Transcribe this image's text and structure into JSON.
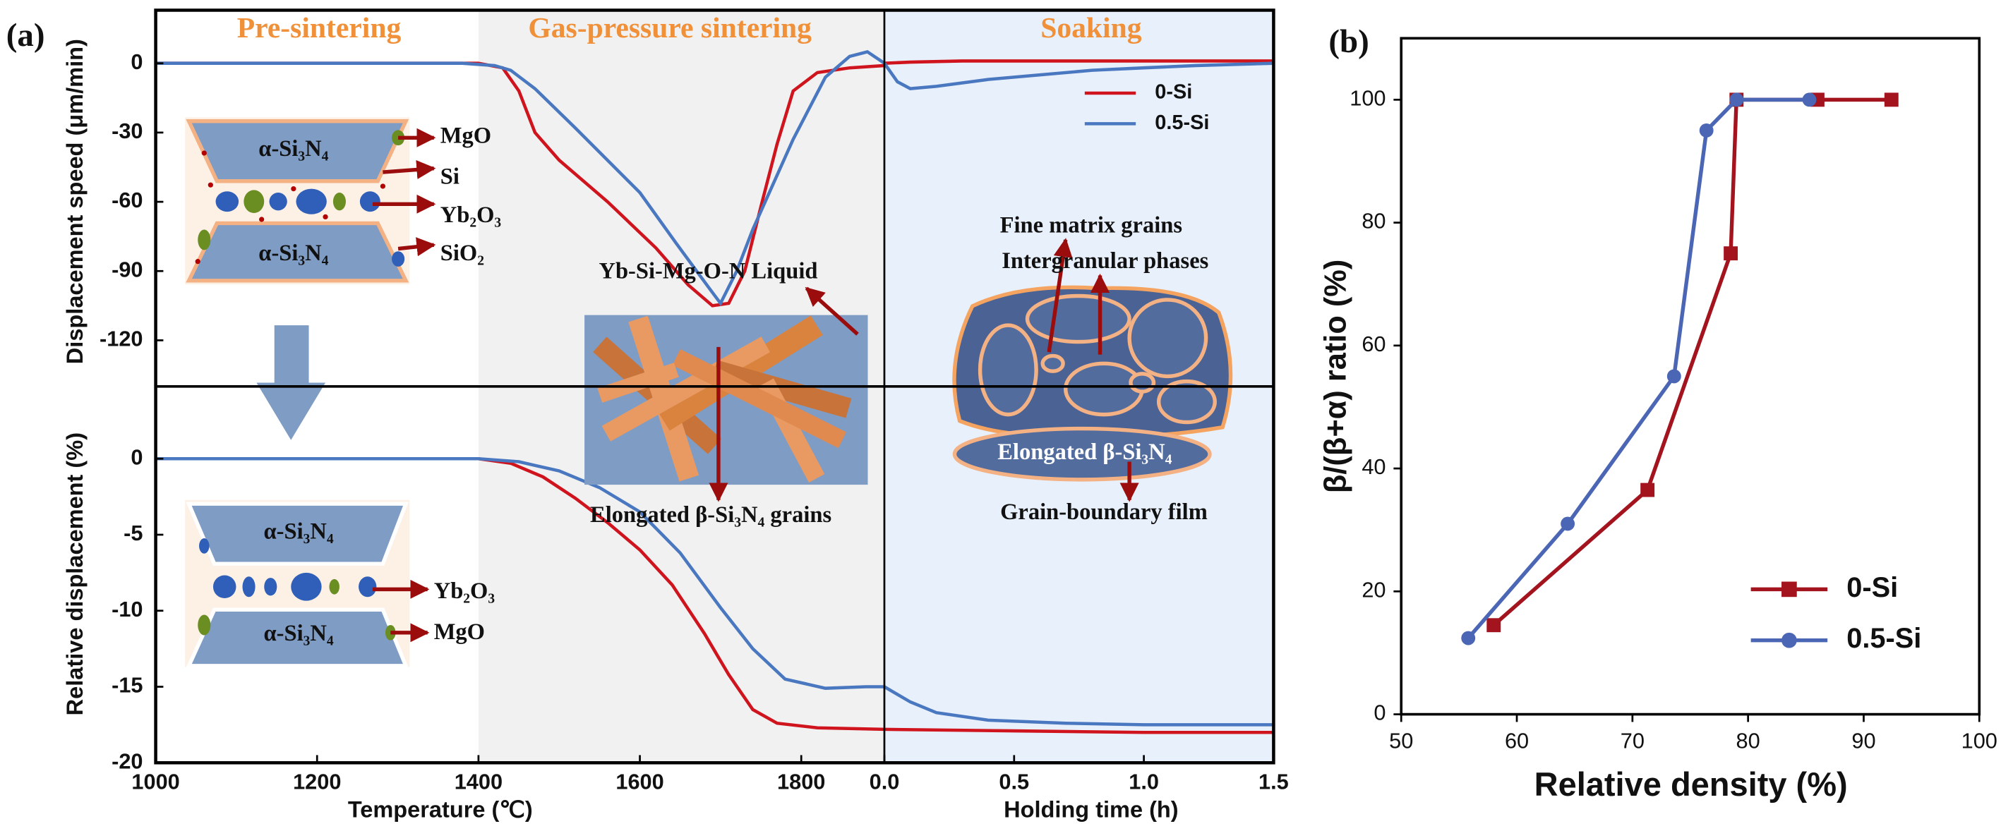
{
  "chart_data": [
    {
      "type": "line",
      "panel_label": "(a)",
      "xlabel": "Temperature (℃)",
      "xlim": [
        1000,
        1903
      ],
      "xticks": [
        1000,
        1200,
        1400,
        1600,
        1800
      ],
      "x2label": "Holding time (h)",
      "x2lim": [
        0,
        1.5
      ],
      "x2ticks": [
        {
          "value": 0,
          "label": "0.0"
        },
        0.5,
        {
          "value": 1,
          "label": "1.0"
        },
        1.5
      ],
      "legend": "upper right",
      "panels": [
        {
          "ylabel": "Displacement speed (μm/min)",
          "ylim": [
            -140,
            23
          ],
          "yticks": [
            0,
            -30,
            -60,
            -90,
            -120
          ],
          "series": [
            {
              "name": "0-Si",
              "color": "#d0141e",
              "x": [
                1000,
                1200,
                1400,
                1430,
                1450,
                1470,
                1500,
                1560,
                1620,
                1660,
                1690,
                1710,
                1730,
                1750,
                1770,
                1790,
                1820,
                1860,
                1903
              ],
              "values": [
                0,
                0,
                0,
                -2,
                -12,
                -30,
                -42,
                -60,
                -80,
                -96,
                -105,
                -104,
                -90,
                -62,
                -35,
                -12,
                -4,
                -2,
                -1
              ],
              "holding_x": [
                0,
                0.1,
                0.3,
                0.5,
                1.0,
                1.5
              ],
              "holding_values": [
                0,
                0.5,
                1,
                1,
                1,
                1
              ]
            },
            {
              "name": "0.5-Si",
              "color": "#4a78c0",
              "x": [
                1000,
                1200,
                1380,
                1420,
                1440,
                1470,
                1520,
                1600,
                1645,
                1685,
                1700,
                1720,
                1740,
                1790,
                1830,
                1860,
                1882,
                1903
              ],
              "values": [
                0,
                0,
                0,
                -1,
                -3,
                -11,
                -28,
                -56,
                -78,
                -97,
                -104,
                -90,
                -72,
                -33,
                -6,
                3,
                5,
                0
              ],
              "holding_x": [
                0,
                0.05,
                0.1,
                0.2,
                0.4,
                0.6,
                0.8,
                1.0,
                1.2,
                1.5
              ],
              "holding_values": [
                0,
                -8,
                -11,
                -10,
                -7,
                -5,
                -3,
                -2,
                -1,
                0
              ]
            }
          ]
        },
        {
          "ylabel": "Relative displacement (%)",
          "ylim": [
            -20,
            4.75
          ],
          "yticks": [
            0,
            -5,
            -10,
            -15,
            -20
          ],
          "series": [
            {
              "color": "#d0141e",
              "x": [
                1000,
                1200,
                1400,
                1440,
                1480,
                1520,
                1560,
                1600,
                1640,
                1680,
                1710,
                1740,
                1770,
                1820,
                1903
              ],
              "values": [
                0,
                0,
                0,
                -0.3,
                -1.2,
                -2.6,
                -4.2,
                -6,
                -8.3,
                -11.5,
                -14.2,
                -16.5,
                -17.4,
                -17.7,
                -17.8
              ],
              "holding_x": [
                0,
                0.5,
                1.0,
                1.5
              ],
              "holding_values": [
                -17.8,
                -17.9,
                -18,
                -18
              ]
            },
            {
              "color": "#4a78c0",
              "x": [
                1000,
                1200,
                1400,
                1450,
                1500,
                1550,
                1600,
                1650,
                1700,
                1740,
                1780,
                1830,
                1880,
                1903
              ],
              "values": [
                0,
                0,
                0,
                -0.2,
                -0.8,
                -1.9,
                -3.5,
                -6.2,
                -9.8,
                -12.5,
                -14.5,
                -15.1,
                -15,
                -15
              ],
              "holding_x": [
                0,
                0.1,
                0.2,
                0.4,
                0.7,
                1.0,
                1.5
              ],
              "holding_values": [
                -15,
                -16,
                -16.7,
                -17.2,
                -17.4,
                -17.5,
                -17.5
              ]
            }
          ]
        }
      ],
      "annotations": [
        "Pre-sintering",
        "Gas-pressure sintering",
        "Soaking",
        "α-Si₃N₄",
        "MgO",
        "Si",
        "Yb₂O₃",
        "α-Si₃N₄",
        "SiO₂",
        "Yb-Si-Mg-O-N Liquid",
        "Elongated β-Si₃N₄ grains",
        "Fine matrix grains",
        "Intergranular phases",
        "Elongated β-Si₃N₄",
        "Grain-boundary film",
        "α-Si₃N₄",
        "Yb₂O₃",
        "α-Si₃N₄",
        "MgO"
      ]
    },
    {
      "type": "line",
      "panel_label": "(b)",
      "xlabel": "Relative density (%)",
      "ylabel": "β/(β+α) ratio (%)",
      "xlim": [
        50,
        100
      ],
      "xticks": [
        50,
        60,
        70,
        80,
        90,
        100
      ],
      "ylim": [
        0,
        110
      ],
      "yticks": [
        0,
        20,
        40,
        60,
        80,
        100
      ],
      "legend": "lower right",
      "series": [
        {
          "name": "0-Si",
          "color": "#a3141e",
          "marker": "square",
          "x": [
            58,
            71.3,
            78.5,
            79,
            86,
            92.4
          ],
          "values": [
            14.5,
            36.5,
            75,
            100,
            100,
            100
          ]
        },
        {
          "name": "0.5-Si",
          "color": "#4a66b4",
          "marker": "circle",
          "x": [
            55.8,
            64.4,
            73.6,
            76.4,
            79,
            85.3
          ],
          "values": [
            12.4,
            31,
            55,
            95,
            100,
            100
          ]
        }
      ]
    }
  ]
}
